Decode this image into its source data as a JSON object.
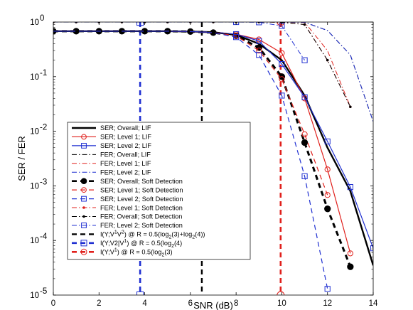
{
  "chart_data": {
    "type": "line",
    "xlabel": "SNR (dB)",
    "ylabel": "SER / FER",
    "xlim": [
      0,
      14
    ],
    "ylim": [
      1e-05,
      1
    ],
    "yscale": "log",
    "grid": false,
    "legend_position": "lower-left",
    "x_ticks": [
      "0",
      "2",
      "4",
      "6",
      "8",
      "10",
      "12",
      "14"
    ],
    "y_ticks": [
      {
        "value": 1e-05,
        "base": "10",
        "exp": "-5"
      },
      {
        "value": 0.0001,
        "base": "10",
        "exp": "-4"
      },
      {
        "value": 0.001,
        "base": "10",
        "exp": "-3"
      },
      {
        "value": 0.01,
        "base": "10",
        "exp": "-2"
      },
      {
        "value": 0.1,
        "base": "10",
        "exp": "-1"
      },
      {
        "value": 1,
        "base": "10",
        "exp": "0"
      }
    ],
    "series": [
      {
        "name": "SER; Overall; LIF",
        "color": "#000000",
        "dash": "solid",
        "width": 2.4,
        "marker": "none",
        "x": [
          0,
          1,
          2,
          3,
          4,
          5,
          6,
          7,
          8,
          9,
          10,
          11,
          12,
          13,
          14
        ],
        "y": [
          0.68,
          0.68,
          0.68,
          0.68,
          0.68,
          0.68,
          0.67,
          0.65,
          0.58,
          0.4,
          0.2,
          0.045,
          0.005,
          0.0008,
          3.5e-05
        ]
      },
      {
        "name": "SER; Level 1; LIF",
        "color": "#e0201c",
        "dash": "solid",
        "width": 1.2,
        "marker": "circle",
        "x": [
          0,
          1,
          2,
          3,
          4,
          5,
          6,
          7,
          8,
          9,
          10,
          11,
          12,
          13
        ],
        "y": [
          0.68,
          0.68,
          0.68,
          0.68,
          0.68,
          0.68,
          0.67,
          0.65,
          0.6,
          0.48,
          0.27,
          0.04,
          0.002,
          5.8e-05
        ]
      },
      {
        "name": "SER; Level 2; LIF",
        "color": "#1f2fd1",
        "dash": "solid",
        "width": 1.2,
        "marker": "square",
        "x": [
          0,
          1,
          2,
          3,
          4,
          5,
          6,
          7,
          8,
          9,
          10,
          11,
          12,
          13,
          14
        ],
        "y": [
          0.68,
          0.68,
          0.68,
          0.68,
          0.68,
          0.68,
          0.67,
          0.65,
          0.6,
          0.45,
          0.17,
          0.042,
          0.0065,
          0.00095,
          7.2e-05
        ]
      },
      {
        "name": "FER; Overall; LIF",
        "color": "#000000",
        "dash": "dashdot",
        "width": 1.0,
        "marker": "none",
        "x": [
          0,
          2,
          4,
          6,
          8,
          9,
          10,
          11,
          12,
          13,
          14
        ],
        "y": [
          1,
          1,
          1,
          1,
          1,
          1,
          1,
          0.99,
          0.7,
          0.25,
          0.015
        ]
      },
      {
        "name": "FER; Level 1; LIF",
        "color": "#e0201c",
        "dash": "dashdot",
        "width": 1.0,
        "marker": "none",
        "x": [
          0,
          2,
          4,
          6,
          8,
          9,
          10,
          11,
          12,
          13
        ],
        "y": [
          1,
          1,
          1,
          1,
          1,
          1,
          1,
          0.99,
          0.3,
          0.028
        ]
      },
      {
        "name": "FER; Level 2; LIF",
        "color": "#1f2fd1",
        "dash": "dashdot",
        "width": 1.0,
        "marker": "none",
        "x": [
          0,
          2,
          4,
          6,
          8,
          9,
          10,
          11,
          12,
          13,
          14
        ],
        "y": [
          1,
          1,
          1,
          1,
          1,
          1,
          1,
          0.99,
          0.7,
          0.25,
          0.015
        ]
      },
      {
        "name": "SER; Overall; Soft Detection",
        "color": "#000000",
        "dash": "dashed",
        "width": 3.0,
        "marker": "dot",
        "x": [
          0,
          1,
          2,
          3,
          4,
          5,
          6,
          7,
          8,
          9,
          10,
          11,
          12,
          13
        ],
        "y": [
          0.68,
          0.68,
          0.68,
          0.68,
          0.68,
          0.68,
          0.67,
          0.64,
          0.56,
          0.34,
          0.1,
          0.0062,
          0.00038,
          3.3e-05
        ]
      },
      {
        "name": "SER; Level 1; Soft Detection",
        "color": "#e0201c",
        "dash": "dashed",
        "width": 1.2,
        "marker": "circle",
        "x": [
          0,
          1,
          2,
          3,
          4,
          5,
          6,
          7,
          8,
          9,
          10,
          11,
          12
        ],
        "y": [
          0.68,
          0.68,
          0.68,
          0.68,
          0.68,
          0.68,
          0.67,
          0.64,
          0.56,
          0.3,
          0.09,
          0.0088,
          0.00068
        ]
      },
      {
        "name": "SER; Level 2; Soft Detection",
        "color": "#1f2fd1",
        "dash": "dashed",
        "width": 1.2,
        "marker": "square",
        "x": [
          0,
          1,
          2,
          3,
          4,
          5,
          6,
          7,
          8,
          9,
          10,
          11,
          12
        ],
        "y": [
          0.68,
          0.68,
          0.68,
          0.68,
          0.68,
          0.68,
          0.67,
          0.64,
          0.53,
          0.25,
          0.045,
          0.0015,
          1.3e-05
        ]
      },
      {
        "name": "FER; Level 1; Soft Detection",
        "color": "#e0201c",
        "dash": "dashdot",
        "width": 1.0,
        "marker": "dot",
        "x": [
          0,
          1,
          2,
          3,
          4,
          5,
          6,
          7,
          8,
          9,
          10,
          11,
          12,
          13
        ],
        "y": [
          1,
          1,
          1,
          1,
          1,
          1,
          1,
          1,
          1,
          1,
          0.99,
          0.9,
          0.2,
          0.028
        ]
      },
      {
        "name": "FER; Overall; Soft Detection",
        "color": "#000000",
        "dash": "dashdot",
        "width": 1.0,
        "marker": "dot",
        "x": [
          0,
          1,
          2,
          3,
          4,
          5,
          6,
          7,
          8,
          9,
          10,
          11,
          12,
          13
        ],
        "y": [
          1,
          1,
          1,
          1,
          1,
          1,
          1,
          1,
          1,
          1,
          0.99,
          0.9,
          0.2,
          0.028
        ]
      },
      {
        "name": "FER; Level 2; Soft Detection",
        "color": "#1f2fd1",
        "dash": "dashdot",
        "width": 1.0,
        "marker": "square",
        "x": [
          0,
          1,
          2,
          3,
          4,
          5,
          6,
          7,
          8,
          9,
          10,
          11
        ],
        "y": [
          1,
          1,
          1,
          1,
          1,
          1,
          1,
          1,
          1,
          0.99,
          0.85,
          0.2
        ]
      }
    ],
    "capacity_lines": [
      {
        "label_main": "I(Y;V",
        "label_sup1": "1",
        "label_mid": "V",
        "label_sup2": "2",
        "label_tail": ") @ R = 0.5(log",
        "label_sub1": "2",
        "label_tail2": "(3)+log",
        "label_sub2": "2",
        "label_end": "(4))",
        "x": 6.5,
        "color": "#000000",
        "width": 2.4,
        "marker": "none"
      },
      {
        "label_main": "I(Y;V2|V",
        "label_sup1": "1",
        "label_mid": "",
        "label_sup2": "",
        "label_tail": ") @ R = 0.5(log",
        "label_sub1": "2",
        "label_tail2": "(4)",
        "label_sub2": "",
        "label_end": "",
        "x": 3.8,
        "color": "#1f2fd1",
        "width": 2.6,
        "marker": "square"
      },
      {
        "label_main": "I(Y;V",
        "label_sup1": "1",
        "label_mid": "",
        "label_sup2": "",
        "label_tail": ")     @ R = 0.5(log",
        "label_sub1": "2",
        "label_tail2": "(3)",
        "label_sub2": "",
        "label_end": "",
        "x": 9.95,
        "color": "#e0201c",
        "width": 2.6,
        "marker": "circle"
      }
    ]
  }
}
